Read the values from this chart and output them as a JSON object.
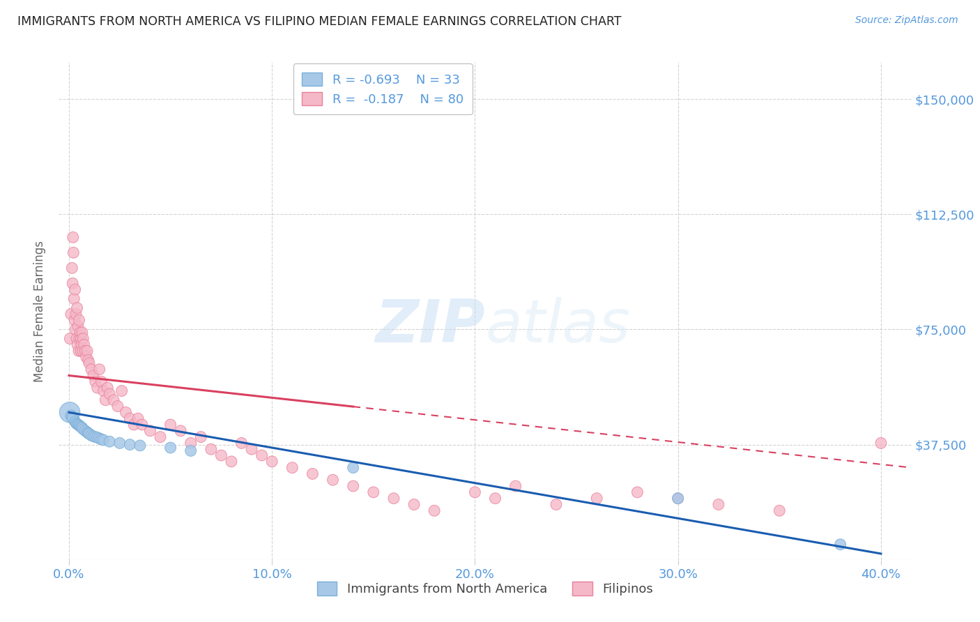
{
  "title": "IMMIGRANTS FROM NORTH AMERICA VS FILIPINO MEDIAN FEMALE EARNINGS CORRELATION CHART",
  "source": "Source: ZipAtlas.com",
  "ylabel": "Median Female Earnings",
  "x_ticks": [
    0.0,
    0.1,
    0.2,
    0.3,
    0.4
  ],
  "x_tick_labels": [
    "0.0%",
    "10.0%",
    "20.0%",
    "30.0%",
    "40.0%"
  ],
  "y_ticks": [
    37500,
    75000,
    112500,
    150000
  ],
  "y_tick_labels": [
    "$37,500",
    "$75,000",
    "$112,500",
    "$150,000"
  ],
  "ylim": [
    0,
    162000
  ],
  "xlim": [
    -0.005,
    0.415
  ],
  "watermark_zip": "ZIP",
  "watermark_atlas": "atlas",
  "legend_r1": "R = -0.693",
  "legend_n1": "N = 33",
  "legend_r2": "R =  -0.187",
  "legend_n2": "N = 80",
  "blue_scatter_color": "#a8c8e8",
  "blue_edge_color": "#7ab0d8",
  "pink_scatter_color": "#f5b8c8",
  "pink_edge_color": "#e8809a",
  "line_blue": "#1a5cb0",
  "line_pink": "#d94060",
  "background": "#ffffff",
  "grid_color": "#c8c8c8",
  "title_color": "#222222",
  "axis_label_color": "#666666",
  "tick_color": "#5599dd",
  "series1_label": "Immigrants from North America",
  "series2_label": "Filipinos",
  "blue_x": [
    0.0004,
    0.001,
    0.0015,
    0.002,
    0.003,
    0.0035,
    0.004,
    0.0045,
    0.005,
    0.0055,
    0.006,
    0.0065,
    0.007,
    0.008,
    0.009,
    0.0095,
    0.01,
    0.011,
    0.012,
    0.013,
    0.014,
    0.015,
    0.016,
    0.017,
    0.02,
    0.025,
    0.03,
    0.035,
    0.05,
    0.06,
    0.14,
    0.3,
    0.38
  ],
  "blue_y": [
    48000,
    47000,
    46500,
    46000,
    45000,
    44500,
    44200,
    44000,
    43800,
    43500,
    43200,
    43000,
    42500,
    42000,
    41500,
    41200,
    41000,
    40500,
    40200,
    40000,
    39800,
    39500,
    39200,
    39000,
    38500,
    38000,
    37500,
    37200,
    36500,
    35500,
    30000,
    20000,
    5000
  ],
  "blue_sizes": [
    450,
    130,
    130,
    130,
    130,
    130,
    130,
    130,
    130,
    130,
    130,
    130,
    130,
    130,
    130,
    130,
    130,
    130,
    130,
    130,
    130,
    130,
    130,
    130,
    130,
    130,
    130,
    130,
    130,
    130,
    130,
    130,
    130
  ],
  "pink_x": [
    0.0005,
    0.001,
    0.0015,
    0.0018,
    0.002,
    0.0022,
    0.0025,
    0.0028,
    0.003,
    0.0032,
    0.0035,
    0.0038,
    0.004,
    0.0042,
    0.0045,
    0.0048,
    0.005,
    0.0052,
    0.0055,
    0.0058,
    0.006,
    0.0062,
    0.0065,
    0.0068,
    0.007,
    0.0075,
    0.008,
    0.0085,
    0.009,
    0.0095,
    0.01,
    0.011,
    0.012,
    0.013,
    0.014,
    0.015,
    0.016,
    0.017,
    0.018,
    0.019,
    0.02,
    0.022,
    0.024,
    0.026,
    0.028,
    0.03,
    0.032,
    0.034,
    0.036,
    0.04,
    0.045,
    0.05,
    0.055,
    0.06,
    0.065,
    0.07,
    0.075,
    0.08,
    0.085,
    0.09,
    0.095,
    0.1,
    0.11,
    0.12,
    0.13,
    0.14,
    0.15,
    0.16,
    0.17,
    0.18,
    0.2,
    0.21,
    0.22,
    0.24,
    0.26,
    0.28,
    0.3,
    0.32,
    0.35,
    0.4
  ],
  "pink_y": [
    72000,
    80000,
    95000,
    90000,
    105000,
    100000,
    85000,
    78000,
    88000,
    75000,
    80000,
    72000,
    82000,
    70000,
    76000,
    68000,
    78000,
    72000,
    74000,
    68000,
    72000,
    70000,
    74000,
    68000,
    72000,
    70000,
    68000,
    66000,
    68000,
    65000,
    64000,
    62000,
    60000,
    58000,
    56000,
    62000,
    58000,
    55000,
    52000,
    56000,
    54000,
    52000,
    50000,
    55000,
    48000,
    46000,
    44000,
    46000,
    44000,
    42000,
    40000,
    44000,
    42000,
    38000,
    40000,
    36000,
    34000,
    32000,
    38000,
    36000,
    34000,
    32000,
    30000,
    28000,
    26000,
    24000,
    22000,
    20000,
    18000,
    16000,
    22000,
    20000,
    24000,
    18000,
    20000,
    22000,
    20000,
    18000,
    16000,
    38000
  ],
  "pink_sizes": [
    130,
    130,
    130,
    130,
    130,
    130,
    130,
    130,
    130,
    130,
    130,
    130,
    130,
    130,
    130,
    130,
    130,
    130,
    130,
    130,
    130,
    130,
    130,
    130,
    130,
    130,
    130,
    130,
    130,
    130,
    130,
    130,
    130,
    130,
    130,
    130,
    130,
    130,
    130,
    130,
    130,
    130,
    130,
    130,
    130,
    130,
    130,
    130,
    130,
    130,
    130,
    130,
    130,
    130,
    130,
    130,
    130,
    130,
    130,
    130,
    130,
    130,
    130,
    130,
    130,
    130,
    130,
    130,
    130,
    130,
    130,
    130,
    130,
    130,
    130,
    130,
    130,
    130,
    130,
    130
  ],
  "pink_line_solid_end": 0.14,
  "pink_line_dash_start": 0.14,
  "pink_line_dash_end": 0.415
}
